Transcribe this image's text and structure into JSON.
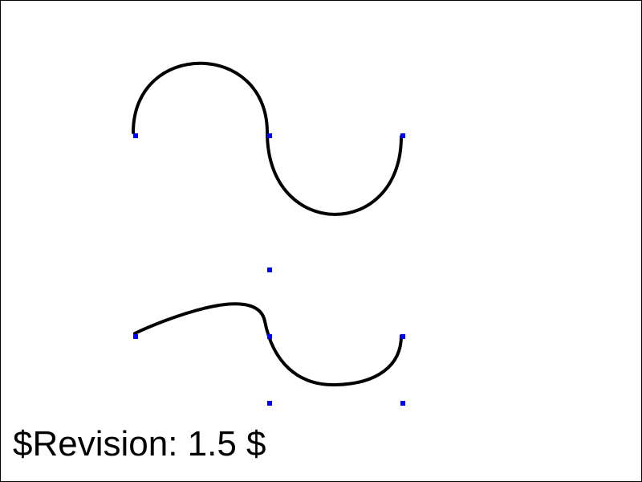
{
  "revision_text": "$Revision: 1.5 $",
  "colors": {
    "frame": "#000000",
    "curve": "#000000",
    "marker": "#0000ff",
    "background": "#ffffff"
  },
  "figures": [
    {
      "name": "upper-s-curve",
      "kind": "path-with-control-points"
    },
    {
      "name": "lower-s-curve",
      "kind": "path-with-control-points"
    }
  ]
}
